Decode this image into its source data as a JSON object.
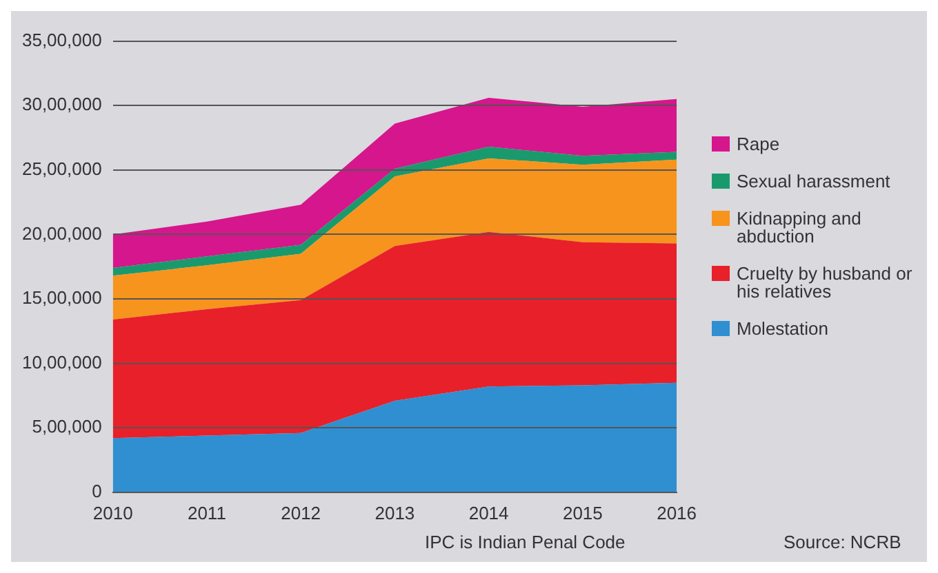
{
  "chart_data": {
    "type": "area",
    "stacked": true,
    "categories": [
      "2010",
      "2011",
      "2012",
      "2013",
      "2014",
      "2015",
      "2016"
    ],
    "series": [
      {
        "name": "Molestation",
        "color": "#2f8fd0",
        "values": [
          420000,
          440000,
          460000,
          710000,
          820000,
          830000,
          850000
        ]
      },
      {
        "name": "Cruelty by husband or his relatives",
        "color": "#e8202a",
        "values": [
          920000,
          980000,
          1030000,
          1200000,
          1200000,
          1110000,
          1080000
        ]
      },
      {
        "name": "Kidnapping and abduction",
        "color": "#f7941d",
        "values": [
          340000,
          340000,
          360000,
          540000,
          570000,
          600000,
          650000
        ]
      },
      {
        "name": "Sexual harassment",
        "color": "#1a9a6c",
        "values": [
          60000,
          70000,
          70000,
          60000,
          90000,
          70000,
          60000
        ]
      },
      {
        "name": "Rape",
        "color": "#d6168c",
        "values": [
          260000,
          270000,
          310000,
          350000,
          380000,
          380000,
          410000
        ]
      }
    ],
    "ylim": [
      0,
      3500000
    ],
    "yticks": [
      0,
      {
        "value": 500000,
        "label": "5,00,000"
      },
      {
        "value": 1000000,
        "label": "10,00,000"
      },
      {
        "value": 1500000,
        "label": "15,00,000"
      },
      {
        "value": 2000000,
        "label": "20,00,000"
      },
      {
        "value": 2500000,
        "label": "25,00,000"
      },
      {
        "value": 3000000,
        "label": "30,00,000"
      },
      {
        "value": 3500000,
        "label": "35,00,000"
      }
    ],
    "grid": "y",
    "legend": "right",
    "annotations": [
      "IPC is Indian Penal Code",
      "Source: NCRB"
    ]
  }
}
